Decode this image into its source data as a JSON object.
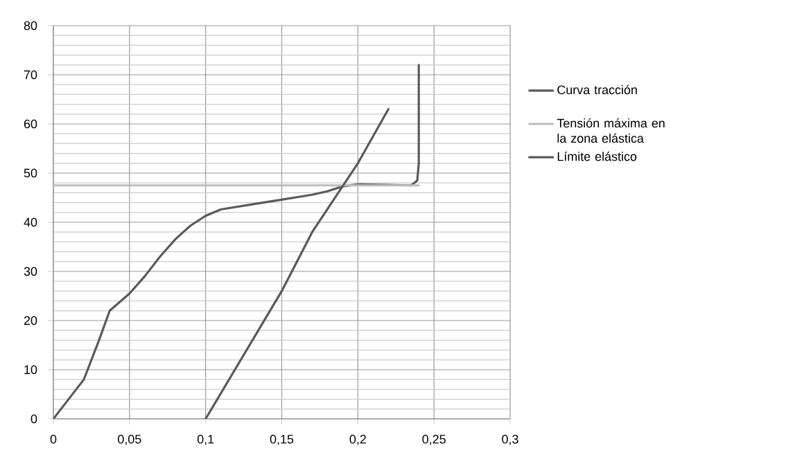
{
  "chart_data": {
    "type": "line",
    "xlim": [
      0,
      0.3
    ],
    "ylim": [
      0,
      80
    ],
    "xticks": [
      0,
      {
        "value": 0.05,
        "label": "0,05"
      },
      {
        "value": 0.1,
        "label": "0,1"
      },
      {
        "value": 0.15,
        "label": "0,15"
      },
      {
        "value": 0.2,
        "label": "0,2"
      },
      {
        "value": 0.25,
        "label": "0,25"
      },
      {
        "value": 0.3,
        "label": "0,3"
      }
    ],
    "yticks": [
      0,
      10,
      20,
      30,
      40,
      50,
      60,
      70,
      80
    ],
    "grid": true,
    "legend": "right",
    "marker": "none",
    "line_style": "solid",
    "series": [
      {
        "name": "Curva tracción",
        "color": "#5a5a5a",
        "x": [
          0,
          0.015,
          0.02,
          0.03,
          0.037,
          0.05,
          0.06,
          0.07,
          0.08,
          0.09,
          0.1,
          0.11,
          0.13,
          0.15,
          0.17,
          0.18,
          0.19,
          0.2,
          0.22,
          0.235,
          0.239,
          0.24,
          0.24
        ],
        "values": [
          0,
          6,
          8,
          16,
          22,
          25.5,
          29,
          33,
          36.5,
          39.3,
          41.3,
          42.6,
          43.6,
          44.6,
          45.6,
          46.3,
          47.3,
          47.7,
          47.6,
          47.5,
          48.5,
          52,
          72
        ]
      },
      {
        "name": "Tensión máxima en la zona elástica",
        "color": "#bdbdbd",
        "x": [
          0,
          0.24
        ],
        "values": [
          47.5,
          47.5
        ]
      },
      {
        "name": "Límite elástico",
        "color": "#5a5a5a",
        "x": [
          0.1,
          0.15,
          0.17,
          0.2,
          0.22
        ],
        "values": [
          0,
          26,
          38,
          52,
          63
        ]
      }
    ]
  }
}
